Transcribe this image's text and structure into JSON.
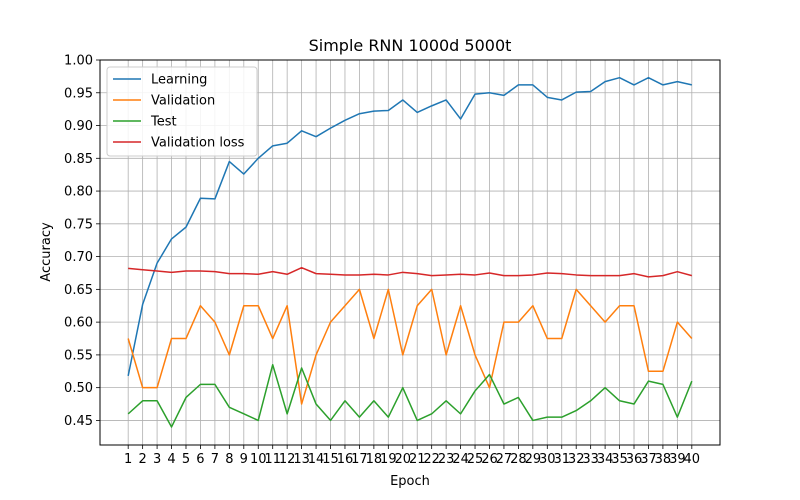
{
  "chart_data": {
    "type": "line",
    "title": "Simple RNN 1000d 5000t",
    "xlabel": "Epoch",
    "ylabel": "Accuracy",
    "x": [
      1,
      2,
      3,
      4,
      5,
      6,
      7,
      8,
      9,
      10,
      11,
      12,
      13,
      14,
      15,
      16,
      17,
      18,
      19,
      20,
      21,
      22,
      23,
      24,
      25,
      26,
      27,
      28,
      29,
      30,
      31,
      32,
      33,
      34,
      35,
      36,
      37,
      38,
      39,
      40
    ],
    "x_tick_labels": [
      "1",
      "2",
      "3",
      "4",
      "5",
      "6",
      "7",
      "8",
      "9",
      "10",
      "11",
      "12",
      "13",
      "14",
      "15",
      "16",
      "17",
      "18",
      "19",
      "20",
      "21",
      "22",
      "23",
      "24",
      "25",
      "26",
      "27",
      "28",
      "29",
      "30",
      "31",
      "32",
      "33",
      "34",
      "35",
      "36",
      "37",
      "38",
      "39",
      "40"
    ],
    "y_ticks": [
      0.45,
      0.5,
      0.55,
      0.6,
      0.65,
      0.7,
      0.75,
      0.8,
      0.85,
      0.9,
      0.95,
      1.0
    ],
    "y_tick_labels": [
      "0.45",
      "0.50",
      "0.55",
      "0.60",
      "0.65",
      "0.70",
      "0.75",
      "0.80",
      "0.85",
      "0.90",
      "0.95",
      "1.00"
    ],
    "xlim": [
      -0.95,
      41.95
    ],
    "ylim": [
      0.4125,
      1.0
    ],
    "grid": true,
    "legend_position": "top-left",
    "series": [
      {
        "name": "Learning",
        "color": "#1f77b4",
        "values": [
          0.518,
          0.627,
          0.69,
          0.727,
          0.745,
          0.789,
          0.788,
          0.845,
          0.826,
          0.85,
          0.869,
          0.873,
          0.892,
          0.883,
          0.896,
          0.908,
          0.918,
          0.922,
          0.923,
          0.939,
          0.92,
          0.93,
          0.939,
          0.91,
          0.948,
          0.95,
          0.946,
          0.962,
          0.962,
          0.943,
          0.939,
          0.951,
          0.952,
          0.967,
          0.973,
          0.962,
          0.973,
          0.962,
          0.967,
          0.962
        ]
      },
      {
        "name": "Validation",
        "color": "#ff7f0e",
        "values": [
          0.575,
          0.5,
          0.5,
          0.575,
          0.575,
          0.625,
          0.6,
          0.55,
          0.625,
          0.625,
          0.575,
          0.625,
          0.475,
          0.55,
          0.6,
          0.625,
          0.65,
          0.575,
          0.65,
          0.55,
          0.625,
          0.65,
          0.55,
          0.625,
          0.55,
          0.5,
          0.6,
          0.6,
          0.625,
          0.575,
          0.575,
          0.65,
          0.625,
          0.6,
          0.625,
          0.625,
          0.525,
          0.525,
          0.6,
          0.575
        ]
      },
      {
        "name": "Test",
        "color": "#2ca02c",
        "values": [
          0.46,
          0.48,
          0.48,
          0.44,
          0.485,
          0.505,
          0.505,
          0.47,
          0.46,
          0.45,
          0.535,
          0.46,
          0.53,
          0.475,
          0.45,
          0.48,
          0.455,
          0.48,
          0.455,
          0.5,
          0.45,
          0.46,
          0.48,
          0.46,
          0.495,
          0.52,
          0.475,
          0.485,
          0.45,
          0.455,
          0.455,
          0.465,
          0.48,
          0.5,
          0.48,
          0.475,
          0.51,
          0.505,
          0.455,
          0.51
        ]
      },
      {
        "name": "Validation loss",
        "color": "#d62728",
        "values": [
          0.682,
          0.68,
          0.678,
          0.676,
          0.678,
          0.678,
          0.677,
          0.674,
          0.674,
          0.673,
          0.677,
          0.673,
          0.683,
          0.674,
          0.673,
          0.672,
          0.672,
          0.673,
          0.672,
          0.676,
          0.674,
          0.671,
          0.672,
          0.673,
          0.672,
          0.675,
          0.671,
          0.671,
          0.672,
          0.675,
          0.674,
          0.672,
          0.671,
          0.671,
          0.671,
          0.674,
          0.669,
          0.671,
          0.677,
          0.671
        ]
      }
    ]
  }
}
